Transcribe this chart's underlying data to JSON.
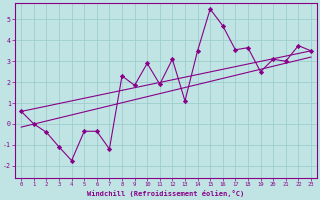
{
  "xlabel": "Windchill (Refroidissement éolien,°C)",
  "bg_color": "#c0e4e4",
  "line_color": "#880088",
  "grid_color": "#9ecece",
  "xlim": [
    -0.5,
    23.5
  ],
  "ylim": [
    -2.6,
    5.8
  ],
  "yticks": [
    -2,
    -1,
    0,
    1,
    2,
    3,
    4,
    5
  ],
  "xticks": [
    0,
    1,
    2,
    3,
    4,
    5,
    6,
    7,
    8,
    9,
    10,
    11,
    12,
    13,
    14,
    15,
    16,
    17,
    18,
    19,
    20,
    21,
    22,
    23
  ],
  "series1_x": [
    0,
    1,
    2,
    3,
    4,
    5,
    6,
    7,
    8,
    9,
    10,
    11,
    12,
    13,
    14,
    15,
    16,
    17,
    18,
    19,
    20,
    21,
    22,
    23
  ],
  "series1_y": [
    0.6,
    0.0,
    -0.4,
    -1.1,
    -1.75,
    -0.35,
    -0.35,
    -1.2,
    2.3,
    1.85,
    2.9,
    1.9,
    3.1,
    1.1,
    3.5,
    5.5,
    4.7,
    3.55,
    3.65,
    2.5,
    3.1,
    3.0,
    3.75,
    3.5
  ],
  "trend1_x": [
    0,
    23
  ],
  "trend1_y": [
    0.6,
    3.5
  ],
  "trend2_x": [
    0,
    23
  ],
  "trend2_y": [
    -0.15,
    3.2
  ]
}
